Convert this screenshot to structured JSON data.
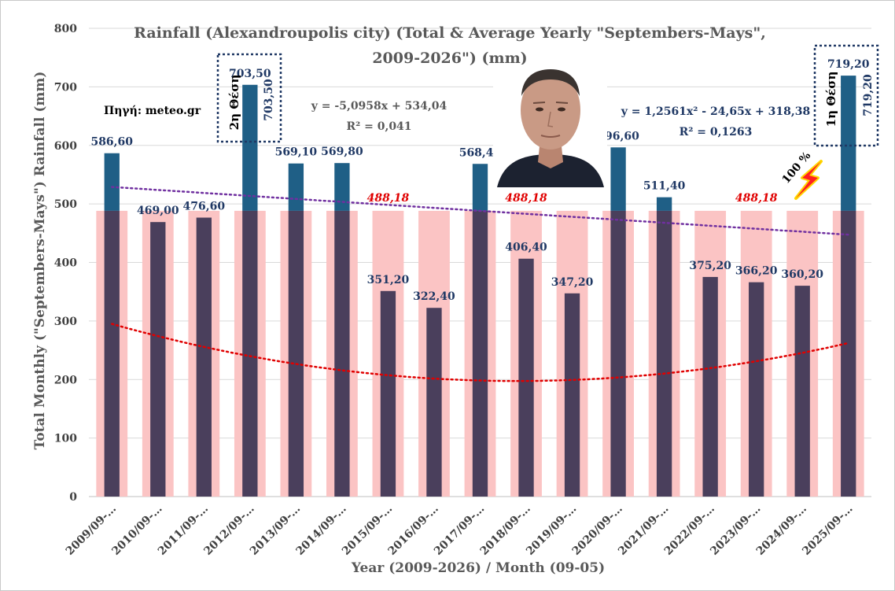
{
  "chart_data": {
    "type": "bar",
    "title": "Rainfall (Alexandroupolis city) (Total & Average Yearly \"Septembers-Mays\",",
    "title_line2": "2009-2026\") (mm)",
    "xlabel": "Year (2009-2026) / Month (09-05)",
    "ylabel": "Total Monthly (\"Septembers-Mays\") Rainfall (mm)",
    "ylim": [
      0,
      800
    ],
    "yticks": [
      "0",
      "100",
      "200",
      "300",
      "400",
      "500",
      "600",
      "700",
      "800"
    ],
    "categories": [
      "2009/09-…",
      "2010/09-…",
      "2011/09-…",
      "2012/09-…",
      "2013/09-…",
      "2014/09-…",
      "2015/09-…",
      "2016/09-…",
      "2017/09-…",
      "2018/09-…",
      "2019/09-…",
      "2020/09-…",
      "2021/09-…",
      "2022/09-…",
      "2023/09-…",
      "2024/09-…",
      "2025/09-…"
    ],
    "series": [
      {
        "values": [
          586.6,
          469.0,
          476.6,
          703.5,
          569.1,
          569.8,
          351.2,
          322.4,
          568.4,
          406.4,
          347.2,
          596.6,
          511.4,
          375.2,
          366.2,
          360.2,
          719.2
        ],
        "labels": [
          "586,60",
          "469,00",
          "476,60",
          "703,50",
          "569,10",
          "569,80",
          "351,20",
          "322,40",
          "568,40",
          "406,40",
          "347,20",
          "596,60",
          "511,40",
          "375,20",
          "366,20",
          "360,20",
          "719,20"
        ],
        "color_above_average": "#1f5f86",
        "color_below_average": "#4a3f5c"
      },
      {
        "values": [
          488.18,
          488.18,
          488.18,
          488.18,
          488.18,
          488.18,
          488.18,
          488.18,
          488.18,
          488.18,
          488.18,
          488.18,
          488.18,
          488.18,
          488.18,
          488.18,
          488.18
        ],
        "color": "#fbc4c4"
      }
    ],
    "average_labels": [
      {
        "index": 6,
        "text": "488,18"
      },
      {
        "index": 9,
        "text": "488,18"
      },
      {
        "index": 14,
        "text": "488,18"
      }
    ],
    "trendlines": [
      {
        "kind": "linear",
        "equation": "y = -5,0958x + 534,04",
        "r2": "R² = 0,041",
        "color": "#7030a0",
        "a": -5.0958,
        "b": 534.04
      },
      {
        "kind": "polynomial",
        "equation": "y = 1,2561x² - 24,65x + 318,38",
        "r2": "R² = 0,1263",
        "color": "#e00000",
        "a": 1.2561,
        "b": -24.65,
        "c": 318.38
      }
    ],
    "annotations": {
      "source": "Πηγή: meteo.gr",
      "rank2_text": "2η Θέση",
      "rank2_value": "703,50",
      "rank1_text": "1η Θέση",
      "rank1_value": "719,20",
      "percent": "100 %"
    },
    "grid": true,
    "legend": "none",
    "colors": {
      "axis_text": "#404040",
      "grid": "#d9d9d9",
      "label": "#1f3864",
      "avg_label": "#e00000",
      "rank_box": "#1f3864",
      "bolt": "#ff2020",
      "bolt_glow": "#ffd700"
    }
  },
  "photo": {
    "icon": "portrait-photo",
    "skin": "#c99a85",
    "shirt": "#1c2230"
  }
}
